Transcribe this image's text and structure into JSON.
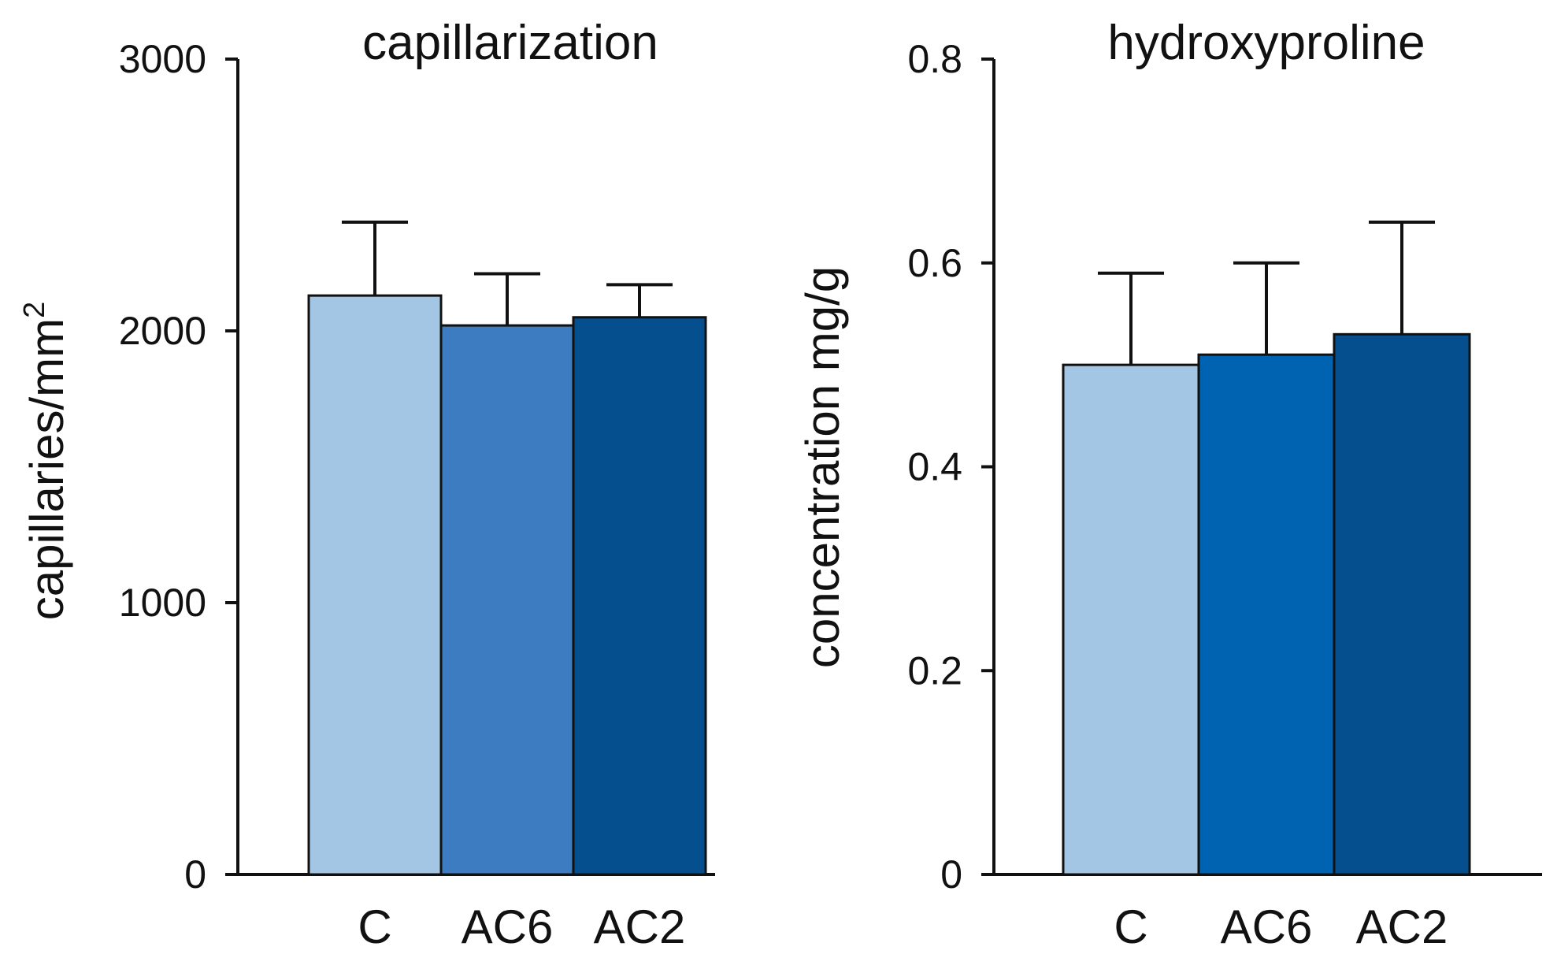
{
  "chart_data": [
    {
      "type": "bar",
      "title": "capillarization",
      "ylabel": "capillaries/mm",
      "ylabel_superscript": "2",
      "xlabel": "",
      "categories": [
        "C",
        "AC6",
        "AC2"
      ],
      "values": [
        2130,
        2020,
        2050
      ],
      "errors": [
        270,
        190,
        120
      ],
      "ylim": [
        0,
        3000
      ],
      "yticks": [
        0,
        1000,
        2000,
        3000
      ],
      "ytick_labels": [
        "0",
        "1000",
        "2000",
        "3000"
      ],
      "colors": [
        "#a3c6e4",
        "#3d7cc0",
        "#064f8f"
      ],
      "grid": false,
      "legend": "none"
    },
    {
      "type": "bar",
      "title": "hydroxyproline",
      "ylabel": "concentration mg/g",
      "xlabel": "",
      "categories": [
        "C",
        "AC6",
        "AC2"
      ],
      "values": [
        0.5,
        0.51,
        0.53
      ],
      "errors": [
        0.09,
        0.09,
        0.11
      ],
      "ylim": [
        0,
        0.8
      ],
      "yticks": [
        0,
        0.2,
        0.4,
        0.6,
        0.8
      ],
      "ytick_labels": [
        "0",
        "0.2",
        "0.4",
        "0.6",
        "0.8"
      ],
      "colors": [
        "#a3c6e4",
        "#0063b2",
        "#064f8f"
      ],
      "grid": false,
      "legend": "none"
    }
  ]
}
